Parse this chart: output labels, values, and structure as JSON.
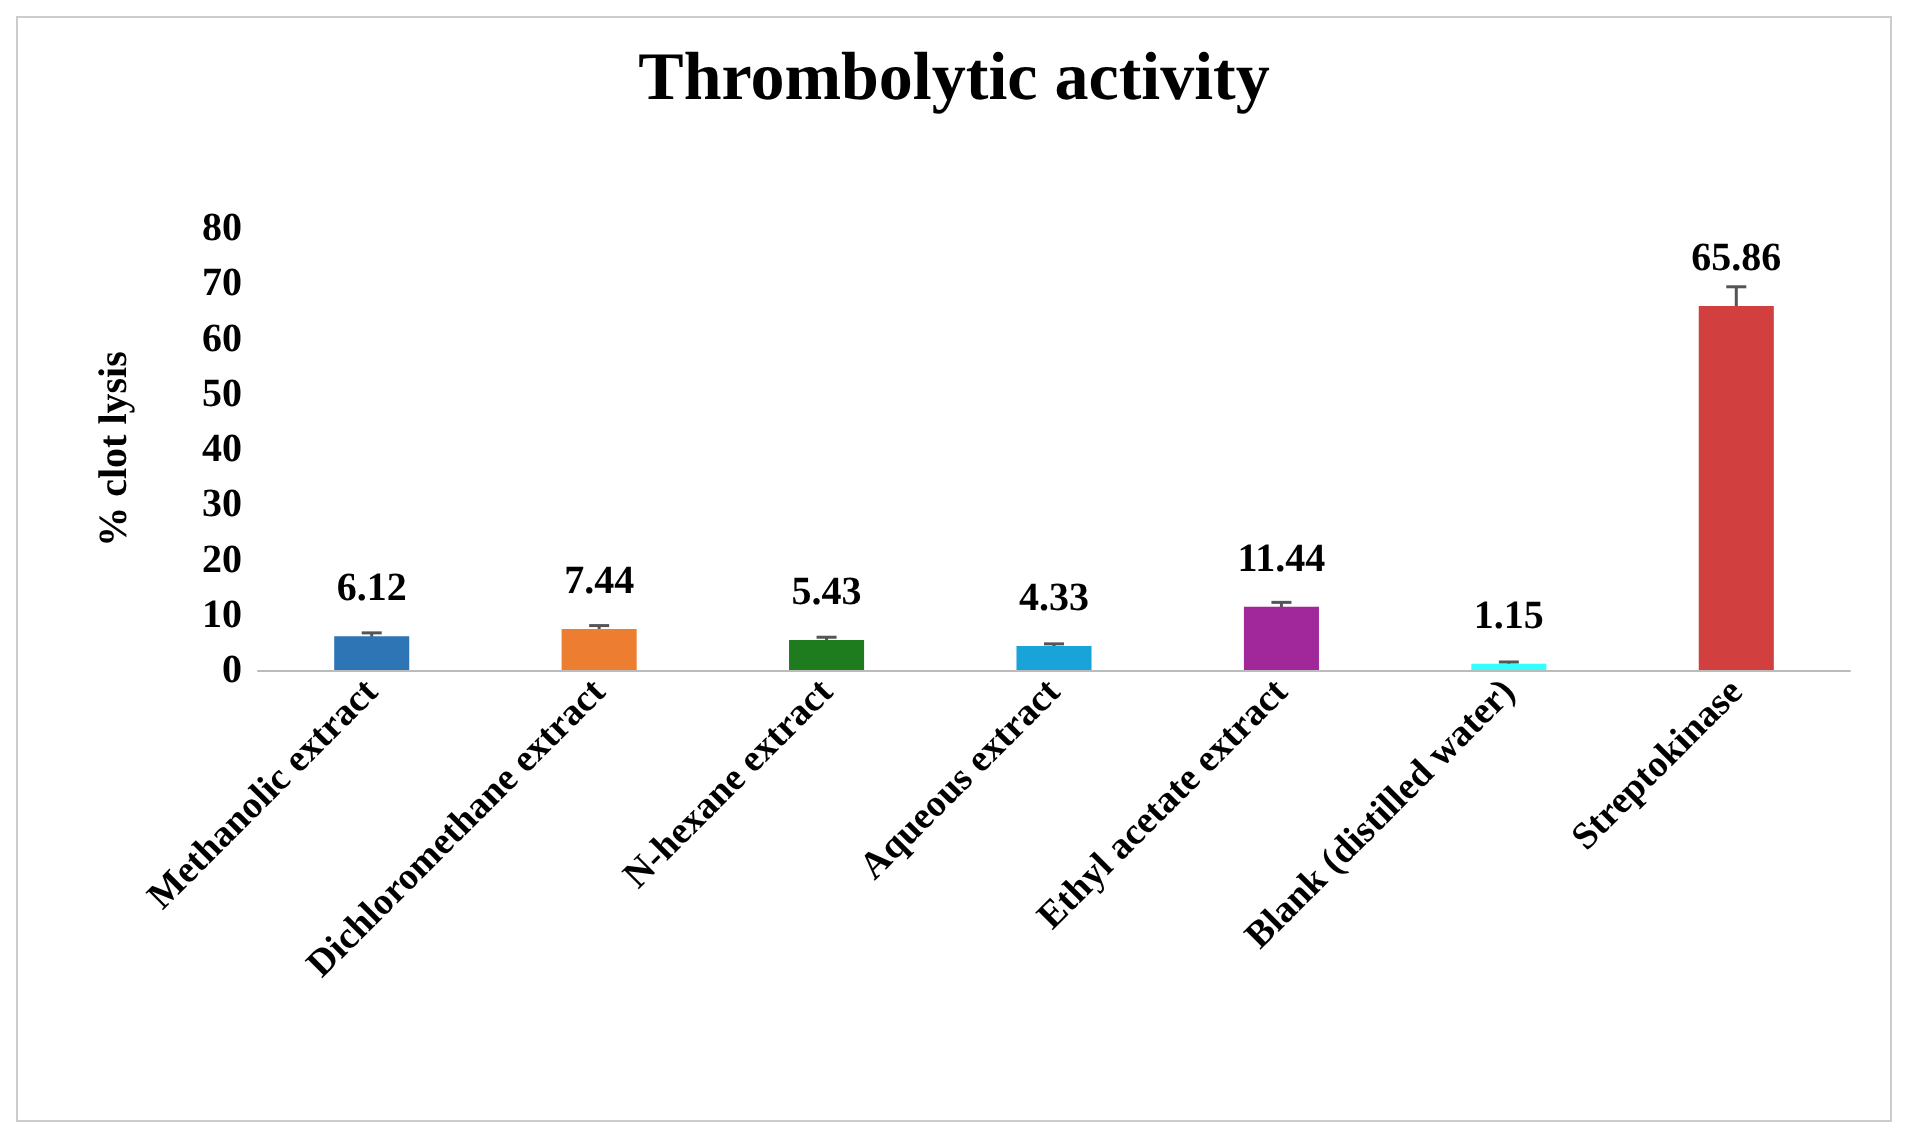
{
  "chart_data": {
    "type": "bar",
    "title": "Thrombolytic activity",
    "ylabel": "% clot lysis",
    "categories": [
      "Methanolic extract",
      "Dichloromethane extract",
      "N-hexane extract",
      "Aqueous extract",
      "Ethyl acetate extract",
      "Blank (distilled water)",
      "Streptokinase"
    ],
    "values": [
      6.12,
      7.44,
      5.43,
      4.33,
      11.44,
      1.15,
      65.86
    ],
    "colors": [
      "#2e75b6",
      "#ed7d31",
      "#1e7b1e",
      "#1aa3d9",
      "#a0289a",
      "#33ffff",
      "#d13f3f"
    ],
    "errors": [
      0.6,
      0.6,
      0.5,
      0.4,
      0.8,
      0.3,
      3.5
    ],
    "ylim": [
      0,
      80
    ],
    "yticks": [
      0,
      10,
      20,
      30,
      40,
      50,
      60,
      70,
      80
    ],
    "grid": false,
    "data_labels": true
  }
}
